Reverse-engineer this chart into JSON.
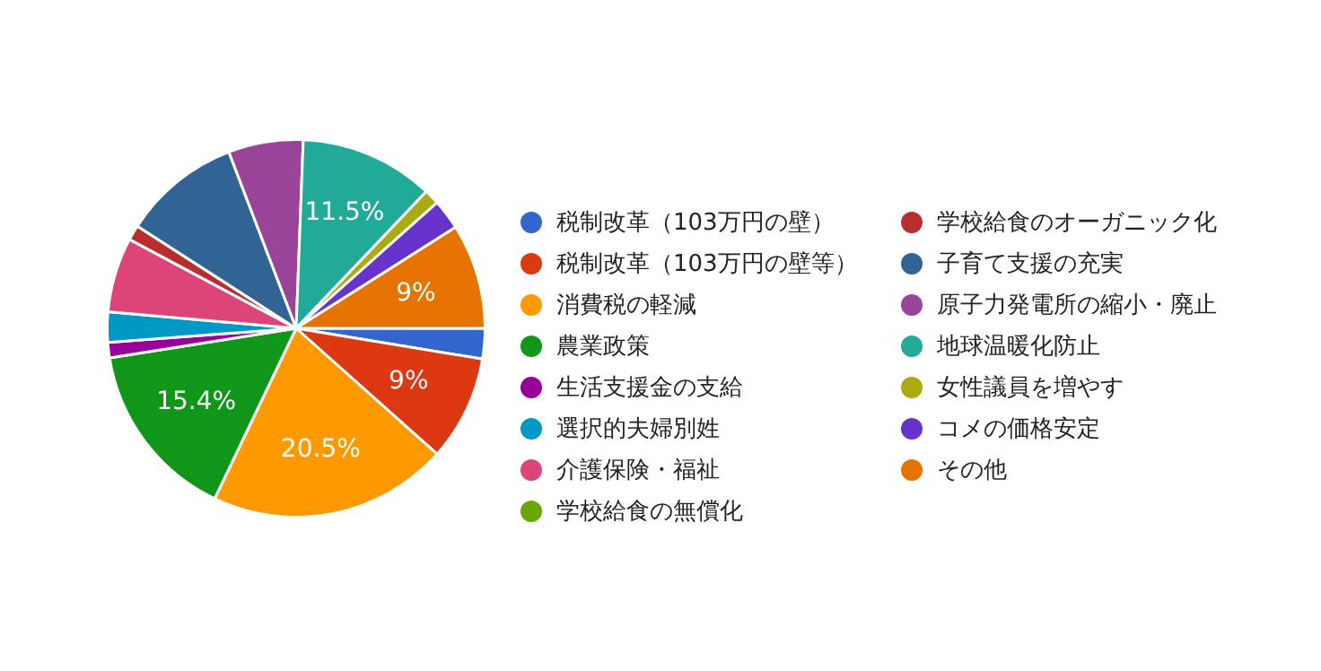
{
  "chart_data": {
    "type": "pie",
    "legend": "right",
    "categories": [
      "税制改革（103万円の壁）",
      "税制改革（103万円の壁等）",
      "消費税の軽減",
      "農業政策",
      "生活支援金の支給",
      "選択的夫婦別姓",
      "介護保険・福祉",
      "学校給食の無償化",
      "学校給食のオーガニック化",
      "子育て支援の充実",
      "原子力発電所の縮小・廃止",
      "地球温暖化防止",
      "女性議員を増やす",
      "コメの価格安定",
      "その他"
    ],
    "values": [
      2.6,
      9,
      20.5,
      15.4,
      1.3,
      2.6,
      6.4,
      0,
      1.3,
      10.1,
      6.4,
      11.5,
      1.3,
      2.6,
      9
    ],
    "value_labels": [
      null,
      "9%",
      "20.5%",
      "15.4%",
      null,
      null,
      null,
      null,
      null,
      null,
      null,
      "11.5%",
      null,
      null,
      "9%"
    ],
    "colors": [
      "#3366cc",
      "#dc3912",
      "#ff9900",
      "#109618",
      "#990099",
      "#0099c6",
      "#dd4477",
      "#66aa00",
      "#b82e2e",
      "#316395",
      "#994499",
      "#22aa99",
      "#aaaa11",
      "#6633cc",
      "#e67300"
    ]
  }
}
